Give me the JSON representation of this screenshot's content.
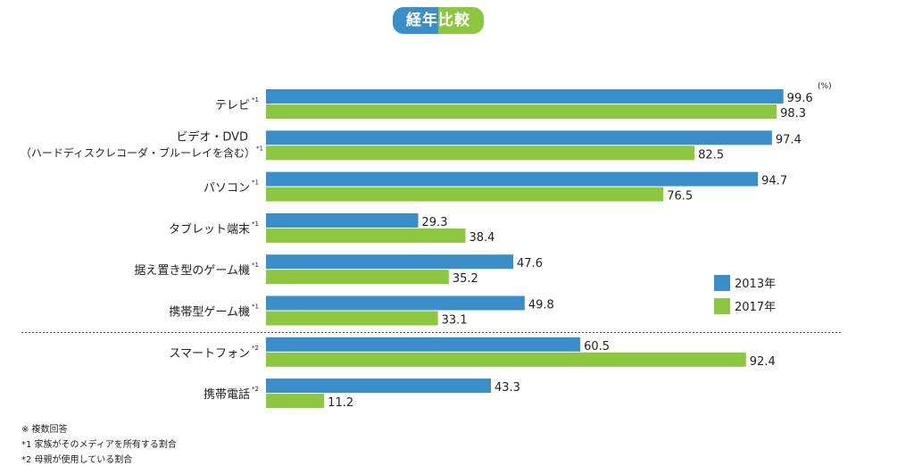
{
  "chart_data": {
    "type": "bar",
    "orientation": "horizontal",
    "title": "経年比較",
    "unit": "(%)",
    "xlim": [
      0,
      100
    ],
    "grid": false,
    "legend_position": "right",
    "categories": [
      {
        "label": "テレビ",
        "mark": "*1"
      },
      {
        "label": "ビデオ・DVD",
        "label2": "（ハードディスクレコーダ・ブルーレイを含む）",
        "mark": "*1"
      },
      {
        "label": "パソコン",
        "mark": "*1"
      },
      {
        "label": "タブレット端末",
        "mark": "*1"
      },
      {
        "label": "据え置き型のゲーム機",
        "mark": "*1"
      },
      {
        "label": "携帯型ゲーム機",
        "mark": "*1"
      },
      {
        "label": "スマートフォン",
        "mark": "*2"
      },
      {
        "label": "携帯電話",
        "mark": "*2"
      }
    ],
    "divider_after_index": 5,
    "series": [
      {
        "name": "2013年",
        "color": "#3a8fcb",
        "values": [
          99.6,
          97.4,
          94.7,
          29.3,
          47.6,
          49.8,
          60.5,
          43.3
        ]
      },
      {
        "name": "2017年",
        "color": "#8dc63f",
        "values": [
          98.3,
          82.5,
          76.5,
          38.4,
          35.2,
          33.1,
          92.4,
          11.2
        ]
      }
    ]
  },
  "notes": [
    "※ 複数回答",
    "*1 家族がそのメディアを所有する割合",
    "*2 母親が使用している割合"
  ]
}
